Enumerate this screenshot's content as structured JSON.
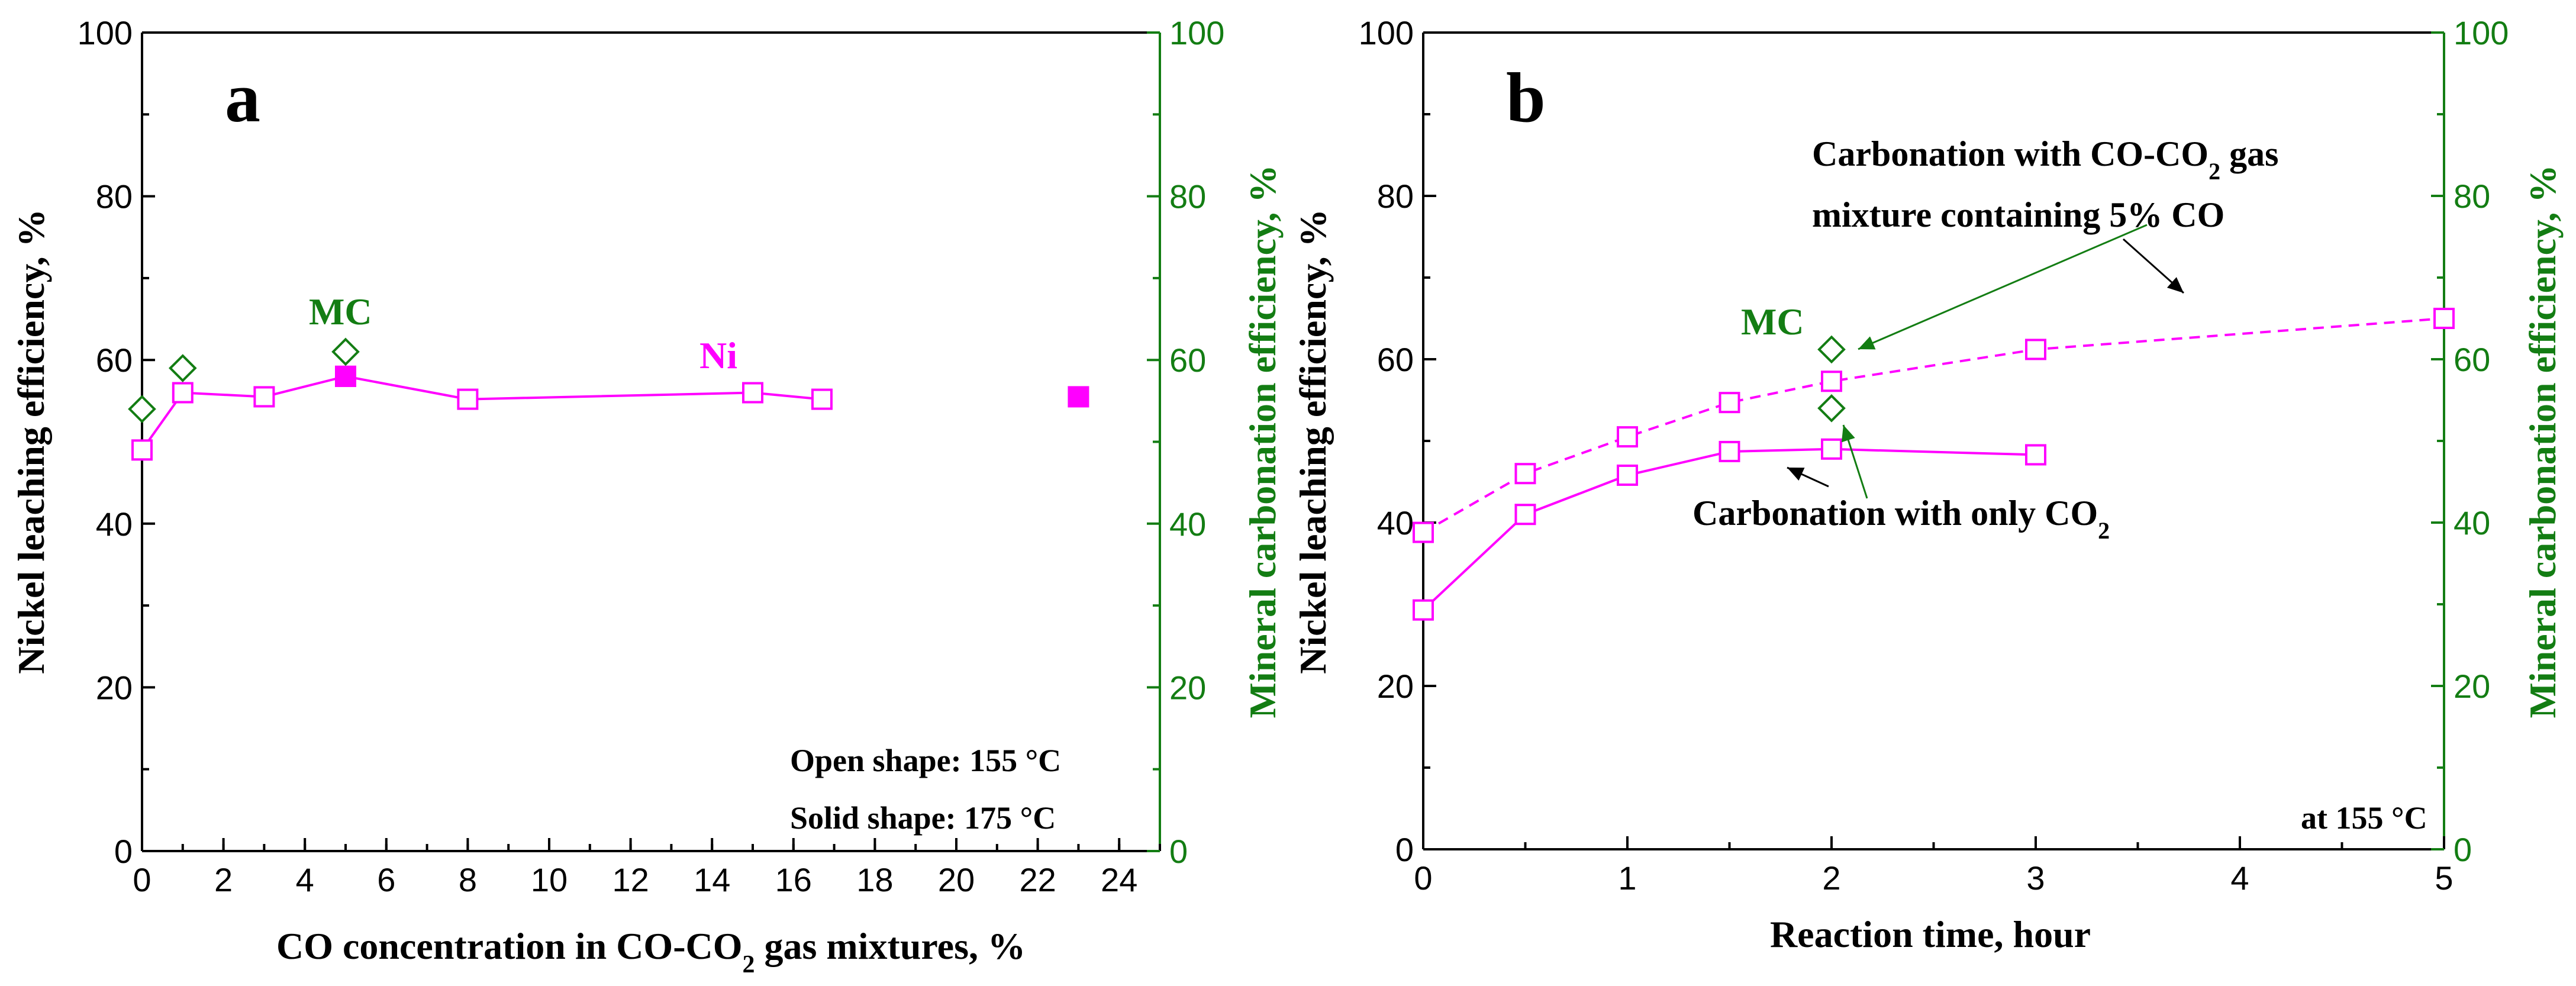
{
  "chart_data": [
    {
      "panel_label": "a",
      "type": "line",
      "xlabel": "CO concentration in CO-CO",
      "xlabel_sub": "2",
      "xlabel_tail": " gas mixtures, %",
      "ylabel_left": "Nickel leaching efficiency, %",
      "ylabel_right": "Mineral carbonation efficiency, %",
      "xlim": [
        0,
        25
      ],
      "ylim": [
        0,
        100
      ],
      "ylim_right": [
        0,
        100
      ],
      "x_ticks": [
        "0",
        "2",
        "4",
        "6",
        "8",
        "10",
        "12",
        "14",
        "16",
        "18",
        "20",
        "22",
        "24"
      ],
      "y_ticks": [
        "0",
        "20",
        "40",
        "60",
        "80",
        "100"
      ],
      "y_ticks_right": [
        "0",
        "20",
        "40",
        "60",
        "80",
        "100"
      ],
      "series": [
        {
          "name": "Ni (open, 155 °C)",
          "marker": "open-square",
          "color": "#ff00ff",
          "line": "solid",
          "points": [
            [
              0,
              49
            ],
            [
              1,
              56
            ],
            [
              3,
              55.5
            ],
            [
              5,
              58
            ],
            [
              8,
              55.2
            ],
            [
              15,
              56
            ],
            [
              16.7,
              55.2
            ]
          ]
        },
        {
          "name": "Ni (solid, 175 °C)",
          "marker": "solid-square",
          "color": "#ff00ff",
          "line": "none",
          "points": [
            [
              5,
              58
            ],
            [
              23,
              55.5
            ]
          ]
        },
        {
          "name": "MC",
          "marker": "open-diamond",
          "color": "#137d13",
          "line": "none",
          "axis": "right",
          "points": [
            [
              0,
              54
            ],
            [
              1,
              59
            ],
            [
              5,
              61
            ]
          ]
        }
      ],
      "labels": {
        "mc": "MC",
        "ni": "Ni",
        "legend_open": "Open shape: 155 °C",
        "legend_solid": "Solid shape: 175 °C"
      }
    },
    {
      "panel_label": "b",
      "type": "line",
      "xlabel": "Reaction time, hour",
      "ylabel_left": "Nickel leaching efficiency, %",
      "ylabel_right": "Mineral carbonation efficiency, %",
      "xlim": [
        0,
        5
      ],
      "ylim": [
        0,
        100
      ],
      "ylim_right": [
        0,
        100
      ],
      "x_ticks": [
        "0",
        "1",
        "2",
        "3",
        "4",
        "5"
      ],
      "y_ticks": [
        "0",
        "20",
        "40",
        "60",
        "80",
        "100"
      ],
      "y_ticks_right": [
        "0",
        "20",
        "40",
        "60",
        "80",
        "100"
      ],
      "series": [
        {
          "name": "Carbonation with CO-CO2 gas mixture containing 5% CO",
          "marker": "open-square",
          "color": "#ff00ff",
          "line": "dashed",
          "points": [
            [
              0,
              38.8
            ],
            [
              0.5,
              46
            ],
            [
              1,
              50.5
            ],
            [
              1.5,
              54.7
            ],
            [
              2,
              57.3
            ],
            [
              3,
              61.2
            ],
            [
              5,
              65
            ]
          ]
        },
        {
          "name": "Carbonation with only CO2",
          "marker": "open-square",
          "color": "#ff00ff",
          "line": "solid",
          "points": [
            [
              0,
              29.3
            ],
            [
              0.5,
              41
            ],
            [
              1,
              45.8
            ],
            [
              1.5,
              48.7
            ],
            [
              2,
              49
            ],
            [
              3,
              48.3
            ]
          ]
        },
        {
          "name": "MC",
          "marker": "open-diamond",
          "color": "#137d13",
          "line": "none",
          "axis": "right",
          "points": [
            [
              2,
              61.2
            ],
            [
              2,
              54
            ]
          ]
        }
      ],
      "labels": {
        "mc": "MC",
        "anno_mix_line1": "Carbonation with CO-CO",
        "anno_mix_sub": "2",
        "anno_mix_tail": " gas",
        "anno_mix_line2": "mixture containing 5% CO",
        "anno_only_main": "Carbonation with only CO",
        "anno_only_sub": "2",
        "temp_note": "at 155 °C"
      }
    }
  ]
}
